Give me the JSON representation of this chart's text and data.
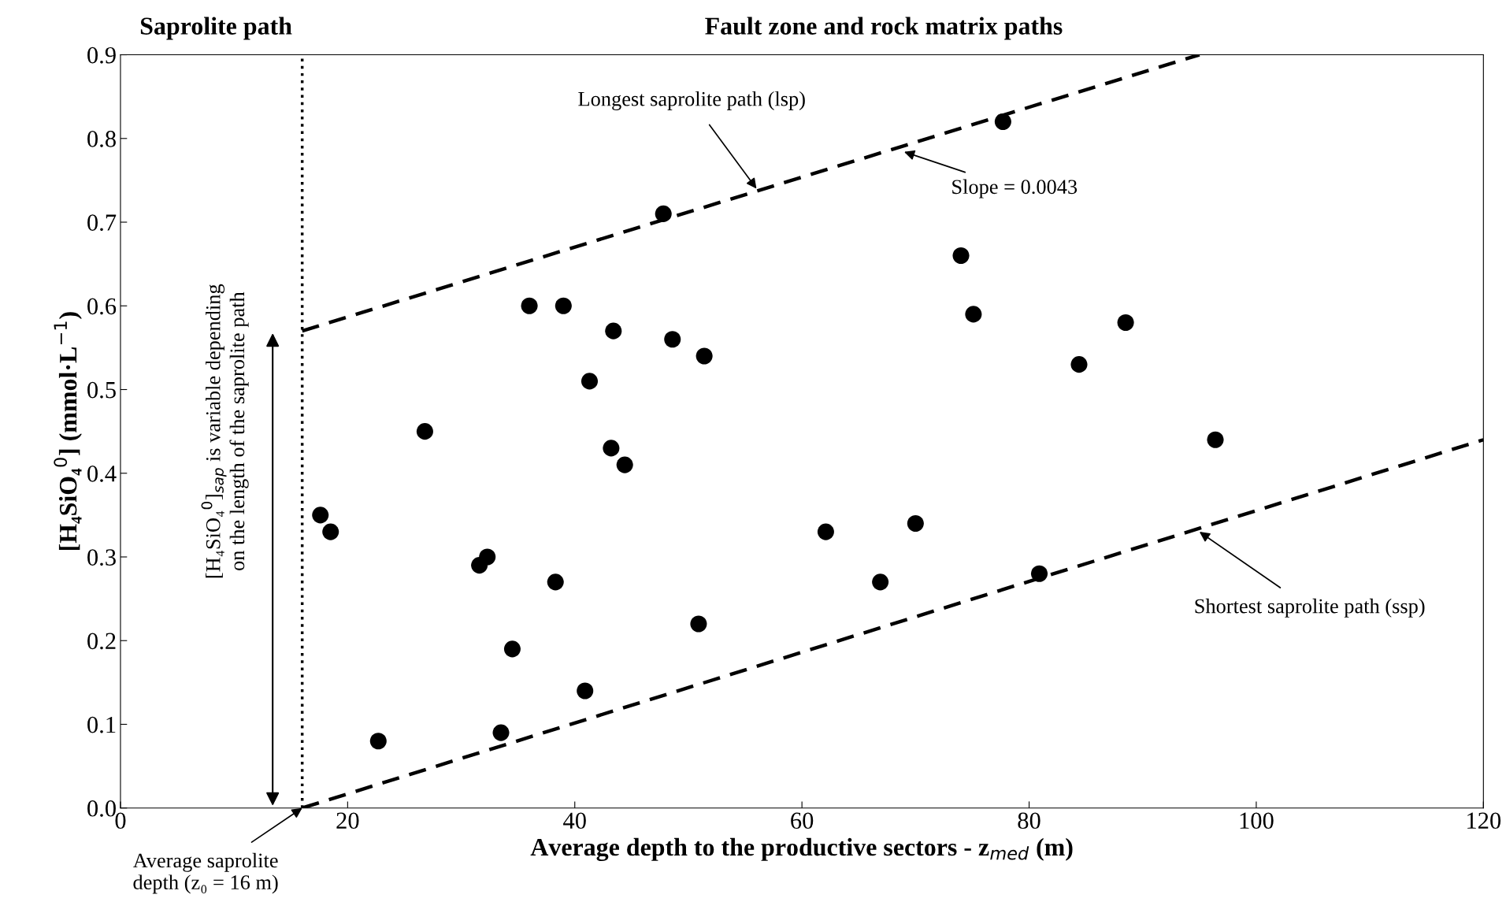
{
  "chart_data": {
    "type": "scatter",
    "xlabel": "Average depth to the productive sectors - z$_{med}$ (m)",
    "ylabel": "[H₄SiO₄$^{0}$] (mmol·L$^{−1}$)",
    "xlim": [
      0,
      120
    ],
    "ylim": [
      0,
      0.9
    ],
    "xticks": [
      0,
      20,
      40,
      60,
      80,
      100,
      120
    ],
    "yticks": [
      {
        "value": 0,
        "label": "0.0"
      },
      0.1,
      0.2,
      0.3,
      0.4,
      0.5,
      0.6,
      0.7,
      0.8,
      0.9
    ],
    "grid": false,
    "marker": "circle",
    "series": [
      {
        "color": "#000000",
        "x": [
          17.6,
          18.5,
          22.7,
          26.8,
          31.6,
          32.3,
          34.5,
          33.5,
          36.0,
          38.3,
          39.0,
          41.3,
          40.9,
          43.4,
          43.2,
          44.4,
          47.8,
          48.6,
          50.9,
          51.4,
          62.1,
          66.9,
          70.0,
          74.0,
          75.1,
          77.7,
          80.9,
          84.4,
          88.5,
          96.4
        ],
        "values": [
          0.35,
          0.33,
          0.08,
          0.45,
          0.29,
          0.3,
          0.19,
          0.09,
          0.6,
          0.27,
          0.6,
          0.51,
          0.14,
          0.57,
          0.43,
          0.41,
          0.71,
          0.56,
          0.22,
          0.54,
          0.33,
          0.27,
          0.34,
          0.66,
          0.59,
          0.82,
          0.28,
          0.53,
          0.58,
          0.44
        ]
      },
      {
        "type": "line",
        "color": "#000000",
        "line_style": "dashed",
        "marker": "none",
        "x": [
          16,
          95
        ],
        "values": [
          0.57,
          0.9
        ]
      },
      {
        "type": "line",
        "color": "#000000",
        "line_style": "dashed",
        "marker": "none",
        "x": [
          16,
          120
        ],
        "values": [
          0.0,
          0.44
        ]
      }
    ],
    "ref_lines": [
      {
        "axis": "x",
        "value": 16,
        "color": "#000000",
        "line_style": "dotted"
      }
    ],
    "annotations": [
      "Saprolite path",
      "Fault zone and rock matrix paths",
      {
        "text": "Longest saprolite path (lsp)",
        "x": 56,
        "y": 0.74
      },
      "Slope = 0.0043",
      {
        "text": "Shortest saprolite path (ssp)",
        "x": 95,
        "y": 0.33
      },
      "[H₄SiO₄$^{0}$]$_{sap}$ is variable depending\non the length of the saprolite path",
      {
        "text": "Average saprolite\ndepth (z₀ = 16 m)",
        "x": 16,
        "y": 0
      }
    ]
  }
}
